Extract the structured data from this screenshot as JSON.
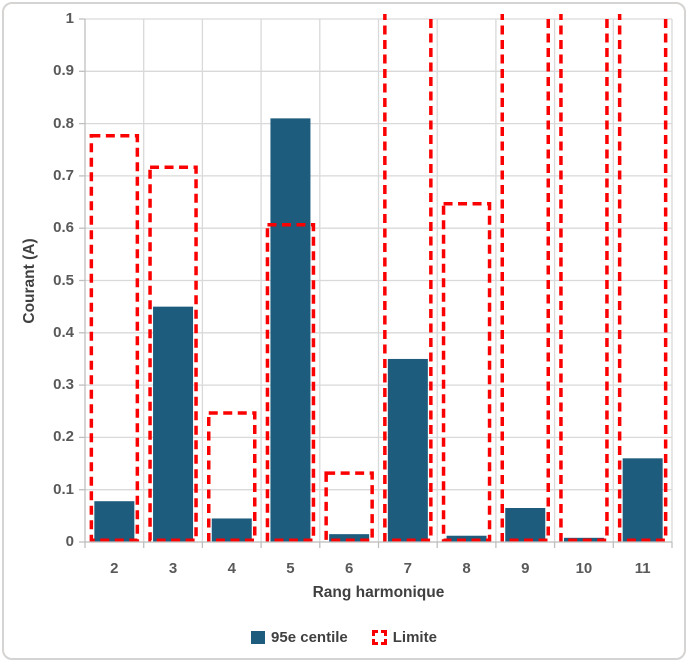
{
  "chart_data": {
    "type": "bar",
    "title": "",
    "xlabel": "Rang harmonique",
    "ylabel": "Courant (A)",
    "categories": [
      "2",
      "3",
      "4",
      "5",
      "6",
      "7",
      "8",
      "9",
      "10",
      "11"
    ],
    "series": [
      {
        "name": "95e centile",
        "style": "solid-fill",
        "color": "#1D5C7D",
        "values": [
          0.078,
          0.45,
          0.045,
          0.81,
          0.015,
          0.35,
          0.012,
          0.065,
          0.008,
          0.16
        ]
      },
      {
        "name": "Limite",
        "style": "dashed-outline-no-fill",
        "color": "#FB0000",
        "values": [
          0.78,
          0.72,
          0.25,
          0.61,
          0.135,
          null,
          0.65,
          null,
          null,
          null
        ],
        "clipped_above_axis_categories": [
          "7",
          "9",
          "10",
          "11"
        ]
      }
    ],
    "ylim": [
      0,
      1
    ],
    "yticks": [
      "0",
      "0.1",
      "0.2",
      "0.3",
      "0.4",
      "0.5",
      "0.6",
      "0.7",
      "0.8",
      "0.9",
      "1"
    ],
    "grid": "horizontal and vertical major gridlines on",
    "grid_color": "#D9D9D9",
    "axis_color": "#BFBFBF",
    "legend_position": "bottom"
  }
}
